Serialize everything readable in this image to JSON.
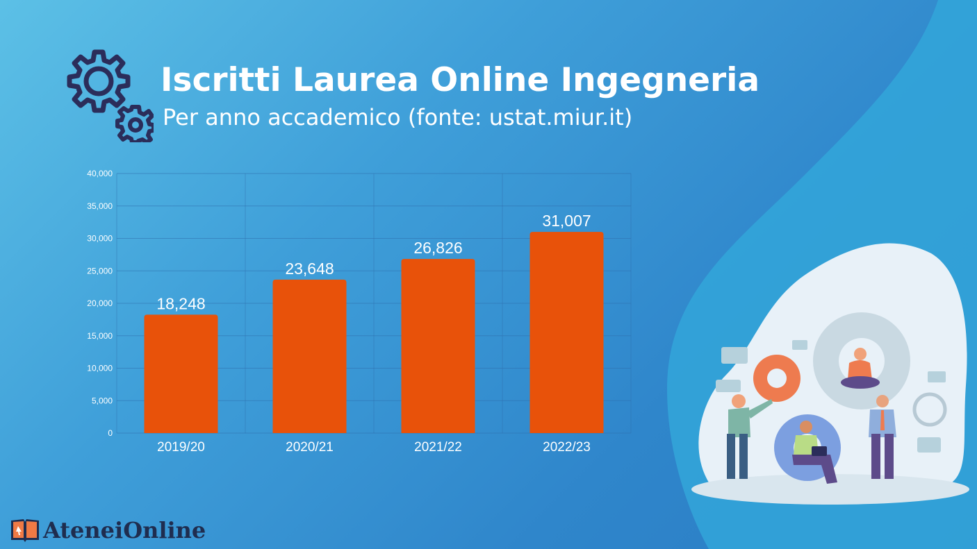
{
  "header": {
    "title": "Iscritti Laurea Online Ingegneria",
    "subtitle": "Per anno accademico (fonte: ustat.miur.it)",
    "icon": "gears-icon"
  },
  "brand": {
    "name": "AteneiOnline",
    "icon": "open-book-icon"
  },
  "illustration": {
    "icon": "team-with-gears-illustration"
  },
  "colors": {
    "bar": "#e8520a",
    "background_light": "#5cc0e6",
    "background_dark": "#2a7cc4",
    "brand_text": "#1f2d4f",
    "icon_navy": "#2b2d5a"
  },
  "chart_data": {
    "type": "bar",
    "categories": [
      "2019/20",
      "2020/21",
      "2021/22",
      "2022/23"
    ],
    "values": [
      18248,
      23648,
      26826,
      31007
    ],
    "value_labels": [
      "18,248",
      "23,648",
      "26,826",
      "31,007"
    ],
    "yticks": [
      "0",
      "5,000",
      "10,000",
      "15,000",
      "20,000",
      "25,000",
      "30,000",
      "35,000",
      "40,000"
    ],
    "ylim": [
      0,
      40000
    ],
    "grid": true,
    "legend": "none"
  }
}
